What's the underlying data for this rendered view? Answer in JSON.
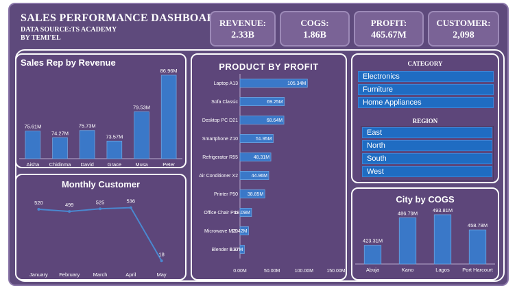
{
  "header": {
    "title": "SALES PERFORMANCE DASHBOARD",
    "source": "DATA SOURCE:TS ACADEMY",
    "by": "BY TEMI'EL"
  },
  "kpis": [
    {
      "label": "REVENUE:",
      "value": "2.33B"
    },
    {
      "label": "COGS:",
      "value": "1.86B"
    },
    {
      "label": "PROFIT:",
      "value": "465.67M"
    },
    {
      "label": "CUSTOMER:",
      "value": "2,098"
    }
  ],
  "colors": {
    "bar": "#3a78c8",
    "panel": "#5d467a",
    "slicer": "#1f6cc2",
    "line": "#4a88d0"
  },
  "sales_rep": {
    "title": "Sales Rep by Revenue",
    "chart_data": {
      "type": "bar",
      "categories": [
        "Aisha",
        "Chidinma",
        "David",
        "Grace",
        "Musa",
        "Peter"
      ],
      "values": [
        75.61,
        74.27,
        75.73,
        73.57,
        79.53,
        86.96
      ],
      "labels": [
        "75.61M",
        "74.27M",
        "75.73M",
        "73.57M",
        "79.53M",
        "86.96M"
      ],
      "ylim": [
        70,
        87.5
      ]
    }
  },
  "monthly_customer": {
    "title": "Monthly Customer",
    "chart_data": {
      "type": "line",
      "categories": [
        "January",
        "February",
        "March",
        "April",
        "May"
      ],
      "values": [
        520,
        499,
        525,
        536,
        18
      ],
      "labels": [
        "520",
        "499",
        "525",
        "536",
        "18"
      ],
      "ylim": [
        0,
        600
      ]
    }
  },
  "product_profit": {
    "title": "PRODUCT BY PROFIT",
    "chart_data": {
      "type": "bar",
      "orientation": "horizontal",
      "categories": [
        "Laptop A13",
        "Sofa Classic",
        "Desktop PC D21",
        "Smartphone Z10",
        "Refrigerator R55",
        "Air Conditioner X2",
        "Printer P50",
        "Office Chair Pro",
        "Microwave M20",
        "Blender B10"
      ],
      "values": [
        105.34,
        69.25,
        68.64,
        51.95,
        48.31,
        44.96,
        38.85,
        18.09,
        13.42,
        6.87
      ],
      "labels": [
        "105.34M",
        "69.25M",
        "68.64M",
        "51.95M",
        "48.31M",
        "44.96M",
        "38.85M",
        "18.09M",
        "13.42M",
        "6.87M"
      ],
      "xticks": [
        "0.00M",
        "50.00M",
        "100.00M",
        "150.00M"
      ],
      "xlim": [
        0,
        150
      ]
    }
  },
  "category": {
    "title": "CATEGORY",
    "items": [
      "Electronics",
      "Furniture",
      "Home Appliances"
    ]
  },
  "region": {
    "title": "REGION",
    "items": [
      "East",
      "North",
      "South",
      "West"
    ]
  },
  "city_cogs": {
    "title": "City by COGS",
    "chart_data": {
      "type": "bar",
      "categories": [
        "Abuja",
        "Kano",
        "Lagos",
        "Port Harcourt"
      ],
      "values": [
        423.31,
        486.79,
        493.81,
        458.78
      ],
      "labels": [
        "423.31M",
        "486.79M",
        "493.81M",
        "458.78M"
      ],
      "ylim": [
        380,
        500
      ]
    }
  }
}
